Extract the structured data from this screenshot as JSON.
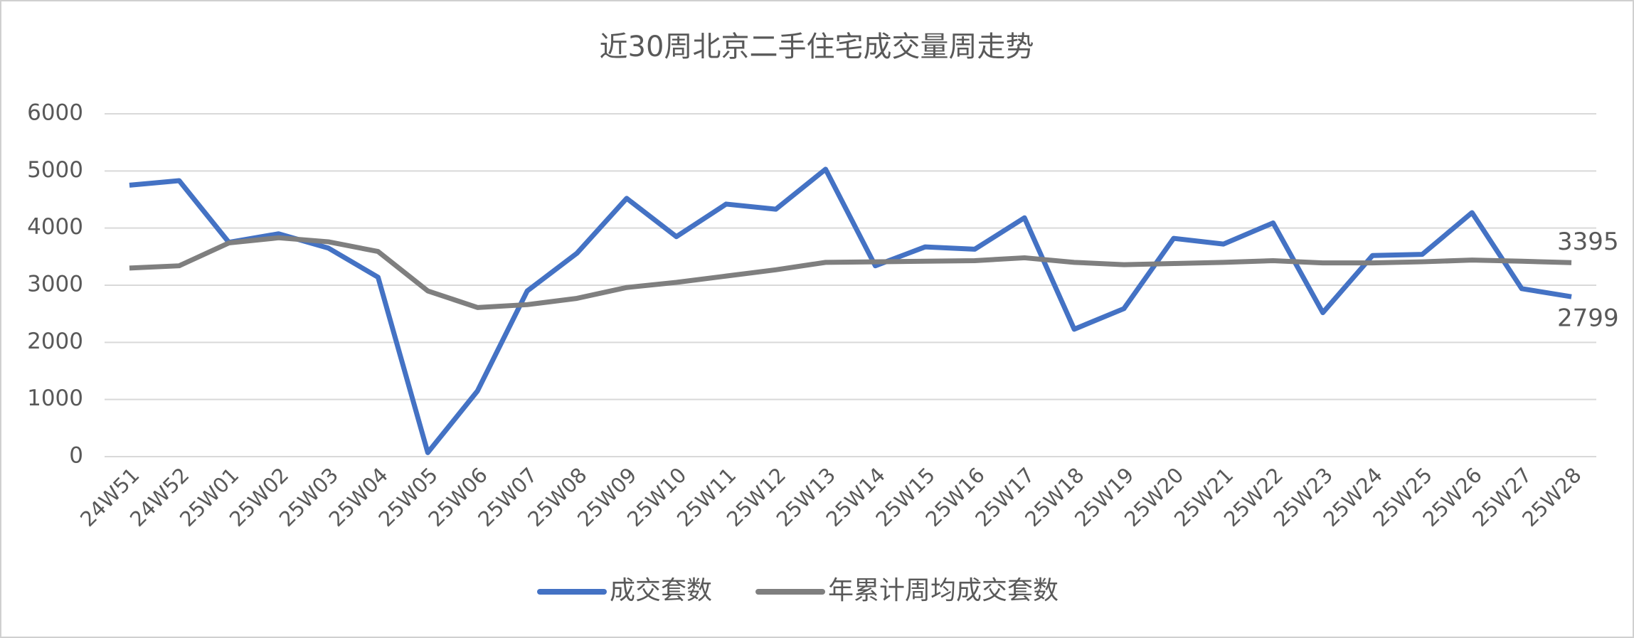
{
  "chart_data": {
    "type": "line",
    "title": "近30周北京二手住宅成交量周走势",
    "categories": [
      "24W51",
      "24W52",
      "25W01",
      "25W02",
      "25W03",
      "25W04",
      "25W05",
      "25W06",
      "25W07",
      "25W08",
      "25W09",
      "25W10",
      "25W11",
      "25W12",
      "25W13",
      "25W14",
      "25W15",
      "25W16",
      "25W17",
      "25W18",
      "25W19",
      "25W20",
      "25W21",
      "25W22",
      "25W23",
      "25W24",
      "25W25",
      "25W26",
      "25W27",
      "25W28"
    ],
    "series": [
      {
        "name": "成交套数",
        "color": "#4472c4",
        "values": [
          4750,
          4830,
          3750,
          3900,
          3650,
          3140,
          70,
          1150,
          2900,
          3560,
          4520,
          3850,
          4420,
          4330,
          5030,
          3340,
          3670,
          3630,
          4180,
          2230,
          2590,
          3820,
          3720,
          4090,
          2520,
          3520,
          3540,
          4270,
          2940,
          2799
        ]
      },
      {
        "name": "年累计周均成交套数",
        "color": "#7f7f7f",
        "values": [
          3300,
          3340,
          3740,
          3830,
          3760,
          3590,
          2900,
          2610,
          2660,
          2770,
          2960,
          3050,
          3160,
          3270,
          3400,
          3410,
          3420,
          3430,
          3480,
          3400,
          3360,
          3380,
          3400,
          3430,
          3390,
          3390,
          3410,
          3440,
          3420,
          3395
        ]
      }
    ],
    "data_labels": "last",
    "ylim": [
      0,
      6000
    ],
    "yticks": [
      0,
      1000,
      2000,
      3000,
      4000,
      5000,
      6000
    ],
    "grid": true,
    "legend": "bottom"
  }
}
